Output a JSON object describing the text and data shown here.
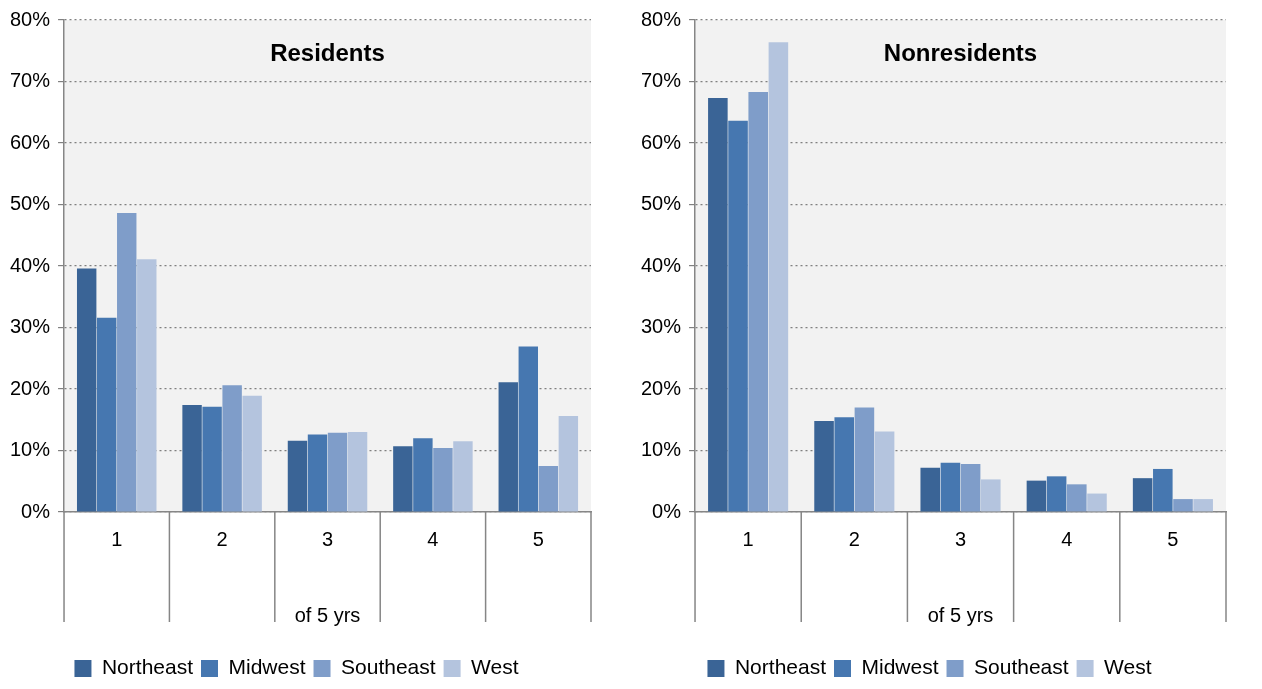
{
  "chart_data": [
    {
      "type": "bar",
      "title": "Residents",
      "xlabel": "of 5 yrs",
      "categories": [
        "1",
        "2",
        "3",
        "4",
        "5"
      ],
      "series": [
        {
          "name": "Northeast",
          "color": "#3a6496",
          "values": [
            39.6,
            17.4,
            11.6,
            10.7,
            21.1
          ]
        },
        {
          "name": "Midwest",
          "color": "#4677b0",
          "values": [
            31.6,
            17.1,
            12.6,
            12.0,
            26.9
          ]
        },
        {
          "name": "Southeast",
          "color": "#7f9dc9",
          "values": [
            48.6,
            20.6,
            12.9,
            10.4,
            7.5
          ]
        },
        {
          "name": "West",
          "color": "#b4c4de",
          "values": [
            41.1,
            18.9,
            13.0,
            11.5,
            15.6
          ]
        }
      ],
      "ylim": [
        0,
        80
      ],
      "yticks": [
        {
          "value": 0,
          "label": "0%"
        },
        {
          "value": 10,
          "label": "10%"
        },
        {
          "value": 20,
          "label": "20%"
        },
        {
          "value": 30,
          "label": "30%"
        },
        {
          "value": 40,
          "label": "40%"
        },
        {
          "value": 50,
          "label": "50%"
        },
        {
          "value": 60,
          "label": "60%"
        },
        {
          "value": 70,
          "label": "70%"
        },
        {
          "value": 80,
          "label": "80%"
        }
      ],
      "grid": "y",
      "legend": "bottom"
    },
    {
      "type": "bar",
      "title": "Nonresidents",
      "xlabel": "of 5 yrs",
      "categories": [
        "1",
        "2",
        "3",
        "4",
        "5"
      ],
      "series": [
        {
          "name": "Northeast",
          "color": "#3a6496",
          "values": [
            67.3,
            14.8,
            7.2,
            5.1,
            5.5
          ]
        },
        {
          "name": "Midwest",
          "color": "#4677b0",
          "values": [
            63.6,
            15.4,
            8.0,
            5.8,
            7.0
          ]
        },
        {
          "name": "Southeast",
          "color": "#7f9dc9",
          "values": [
            68.3,
            17.0,
            7.8,
            4.5,
            2.1
          ]
        },
        {
          "name": "West",
          "color": "#b4c4de",
          "values": [
            76.4,
            13.1,
            5.3,
            3.0,
            2.1
          ]
        }
      ],
      "ylim": [
        0,
        80
      ],
      "yticks": [
        {
          "value": 0,
          "label": "0%"
        },
        {
          "value": 10,
          "label": "10%"
        },
        {
          "value": 20,
          "label": "20%"
        },
        {
          "value": 30,
          "label": "30%"
        },
        {
          "value": 40,
          "label": "40%"
        },
        {
          "value": 50,
          "label": "50%"
        },
        {
          "value": 60,
          "label": "60%"
        },
        {
          "value": 70,
          "label": "70%"
        },
        {
          "value": 80,
          "label": "80%"
        }
      ],
      "grid": "y",
      "legend": "bottom"
    }
  ]
}
